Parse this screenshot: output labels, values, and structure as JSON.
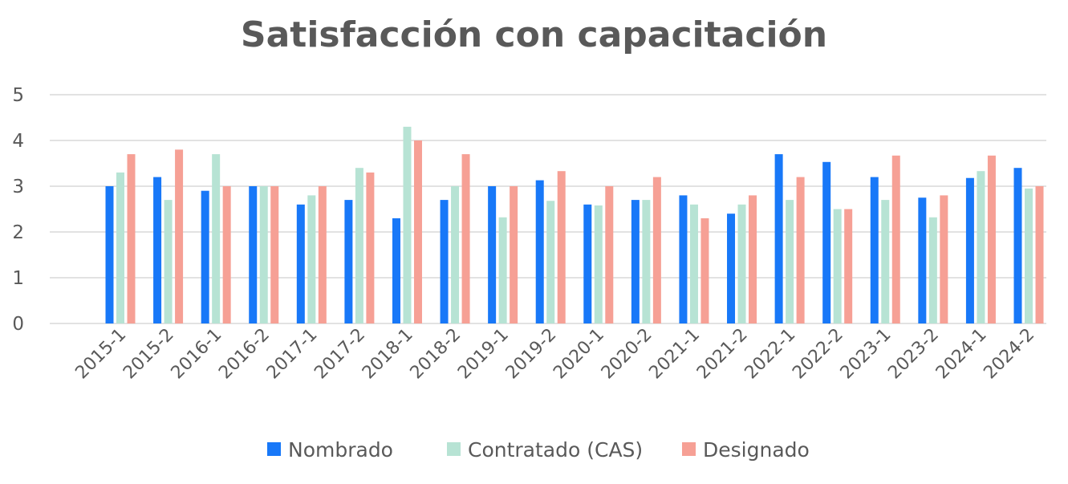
{
  "chart_data": {
    "type": "bar",
    "title": "Satisfacción con capacitación",
    "xlabel": "",
    "ylabel": "",
    "ylim": [
      0,
      5
    ],
    "yticks": [
      "0",
      "1",
      "2",
      "3",
      "4",
      "5"
    ],
    "grid": true,
    "legend_position": "bottom",
    "categories": [
      "2015-1",
      "2015-2",
      "2016-1",
      "2016-2",
      "2017-1",
      "2017-2",
      "2018-1",
      "2018-2",
      "2019-1",
      "2019-2",
      "2020-1",
      "2020-2",
      "2021-1",
      "2021-2",
      "2022-1",
      "2022-2",
      "2023-1",
      "2023-2",
      "2024-1",
      "2024-2"
    ],
    "series": [
      {
        "name": "Nombrado",
        "color": "#1878F8",
        "values": [
          3.0,
          3.2,
          2.9,
          3.0,
          2.6,
          2.7,
          2.3,
          2.7,
          3.0,
          3.13,
          2.6,
          2.7,
          2.8,
          2.4,
          3.7,
          3.53,
          3.2,
          2.75,
          3.18,
          3.4
        ]
      },
      {
        "name": "Contratado (CAS)",
        "color": "#B7E3D4",
        "values": [
          3.3,
          2.7,
          3.7,
          3.0,
          2.8,
          3.4,
          4.3,
          3.0,
          2.32,
          2.68,
          2.58,
          2.7,
          2.6,
          2.6,
          2.7,
          2.5,
          2.7,
          2.32,
          3.33,
          2.95
        ]
      },
      {
        "name": "Designado",
        "color": "#F6A095",
        "values": [
          3.7,
          3.8,
          3.0,
          3.0,
          3.0,
          3.3,
          4.0,
          3.7,
          3.0,
          3.33,
          3.0,
          3.2,
          2.3,
          2.8,
          3.2,
          2.5,
          3.67,
          2.8,
          3.67,
          3.0
        ]
      }
    ]
  }
}
